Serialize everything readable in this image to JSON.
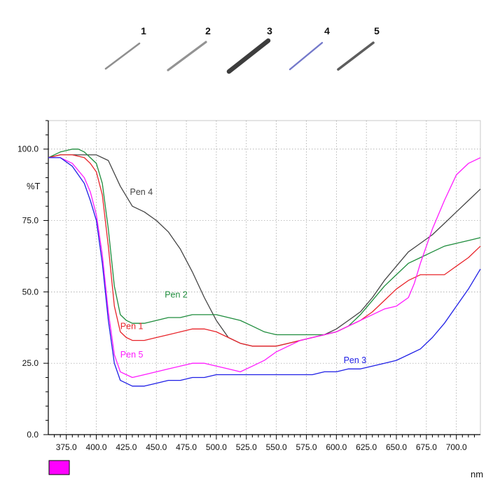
{
  "samples": {
    "items": [
      {
        "label": "1",
        "color": "#8a8a8a"
      },
      {
        "label": "2",
        "color": "#8e8e8e"
      },
      {
        "label": "3",
        "color": "#333333"
      },
      {
        "label": "4",
        "color": "#6d72c8"
      },
      {
        "label": "5",
        "color": "#555555"
      }
    ]
  },
  "chart_data": {
    "type": "line",
    "ylabel": "%T",
    "xlabel": "nm",
    "xlim": [
      360,
      720
    ],
    "ylim": [
      0,
      110
    ],
    "grid": true,
    "x_ticks": [
      "375.0",
      "400.0",
      "425.0",
      "450.0",
      "475.0",
      "500.0",
      "525.0",
      "550.0",
      "575.0",
      "600.0",
      "625.0",
      "650.0",
      "675.0",
      "700.0"
    ],
    "y_ticks": [
      "0.0",
      "25.0",
      "50.0",
      "75.0",
      "100.0"
    ],
    "legend_swatch_color": "#ff00ff",
    "series": [
      {
        "name": "Pen 4",
        "color": "#444444",
        "label_at": [
          428,
          84
        ],
        "x": [
          360,
          370,
          380,
          390,
          400,
          410,
          420,
          430,
          440,
          450,
          460,
          470,
          480,
          490,
          500,
          510,
          520,
          530,
          540,
          550,
          560,
          570,
          580,
          590,
          600,
          610,
          620,
          630,
          640,
          650,
          660,
          670,
          680,
          690,
          700,
          710,
          720
        ],
        "values": [
          97,
          98,
          98,
          98,
          98,
          96,
          87,
          80,
          78,
          75,
          71,
          65,
          57,
          48,
          40,
          34,
          32,
          31,
          31,
          31,
          32,
          33,
          34,
          35,
          37,
          40,
          43,
          48,
          54,
          59,
          64,
          67,
          70,
          74,
          78,
          82,
          86
        ]
      },
      {
        "name": "Pen 2",
        "color": "#1e8c3c",
        "label_at": [
          457,
          48
        ],
        "x": [
          360,
          370,
          380,
          385,
          390,
          400,
          405,
          410,
          415,
          420,
          425,
          430,
          440,
          450,
          460,
          470,
          480,
          490,
          500,
          510,
          520,
          530,
          540,
          550,
          560,
          570,
          580,
          590,
          600,
          610,
          620,
          630,
          640,
          650,
          660,
          670,
          680,
          690,
          700,
          710,
          720
        ],
        "values": [
          97,
          99,
          100,
          100,
          99,
          95,
          88,
          72,
          52,
          42,
          40,
          39,
          39,
          40,
          41,
          41,
          42,
          42,
          42,
          41,
          40,
          38,
          36,
          35,
          35,
          35,
          35,
          35,
          36,
          38,
          42,
          47,
          52,
          56,
          60,
          62,
          64,
          66,
          67,
          68,
          69
        ]
      },
      {
        "name": "Pen 1",
        "color": "#e8242a",
        "label_at": [
          420,
          37
        ],
        "x": [
          360,
          370,
          380,
          390,
          395,
          400,
          405,
          410,
          415,
          420,
          425,
          430,
          440,
          450,
          460,
          470,
          480,
          490,
          500,
          510,
          520,
          530,
          540,
          550,
          560,
          570,
          580,
          590,
          600,
          610,
          620,
          630,
          640,
          650,
          660,
          670,
          680,
          690,
          700,
          710,
          720
        ],
        "values": [
          97,
          98,
          98,
          97,
          95,
          92,
          84,
          66,
          45,
          36,
          34,
          33,
          33,
          34,
          35,
          36,
          37,
          37,
          36,
          34,
          32,
          31,
          31,
          31,
          32,
          33,
          34,
          35,
          36,
          38,
          40,
          43,
          47,
          51,
          54,
          56,
          56,
          56,
          59,
          62,
          66
        ]
      },
      {
        "name": "Pen 5",
        "color": "#ff1aff",
        "label_at": [
          420,
          27
        ],
        "x": [
          360,
          370,
          380,
          390,
          395,
          400,
          405,
          410,
          415,
          420,
          425,
          430,
          440,
          450,
          460,
          470,
          480,
          490,
          500,
          510,
          520,
          530,
          540,
          550,
          560,
          570,
          580,
          590,
          600,
          610,
          620,
          630,
          640,
          650,
          660,
          665,
          670,
          680,
          690,
          700,
          710,
          720
        ],
        "values": [
          97,
          97,
          95,
          90,
          85,
          77,
          63,
          43,
          28,
          22,
          21,
          20,
          21,
          22,
          23,
          24,
          25,
          25,
          24,
          23,
          22,
          24,
          26,
          29,
          31,
          33,
          34,
          35,
          36,
          38,
          40,
          42,
          44,
          45,
          48,
          53,
          60,
          72,
          82,
          91,
          95,
          97
        ]
      },
      {
        "name": "Pen 3",
        "color": "#1f1fe6",
        "label_at": [
          606,
          25
        ],
        "x": [
          360,
          370,
          380,
          390,
          395,
          400,
          405,
          410,
          415,
          420,
          425,
          430,
          440,
          450,
          460,
          470,
          480,
          490,
          500,
          510,
          520,
          530,
          540,
          550,
          560,
          570,
          580,
          590,
          600,
          610,
          620,
          630,
          640,
          650,
          660,
          670,
          680,
          690,
          700,
          710,
          720
        ],
        "values": [
          97,
          97,
          94,
          88,
          82,
          75,
          60,
          40,
          25,
          19,
          18,
          17,
          17,
          18,
          19,
          19,
          20,
          20,
          21,
          21,
          21,
          21,
          21,
          21,
          21,
          21,
          21,
          22,
          22,
          23,
          23,
          24,
          25,
          26,
          28,
          30,
          34,
          39,
          45,
          51,
          58
        ]
      }
    ]
  }
}
